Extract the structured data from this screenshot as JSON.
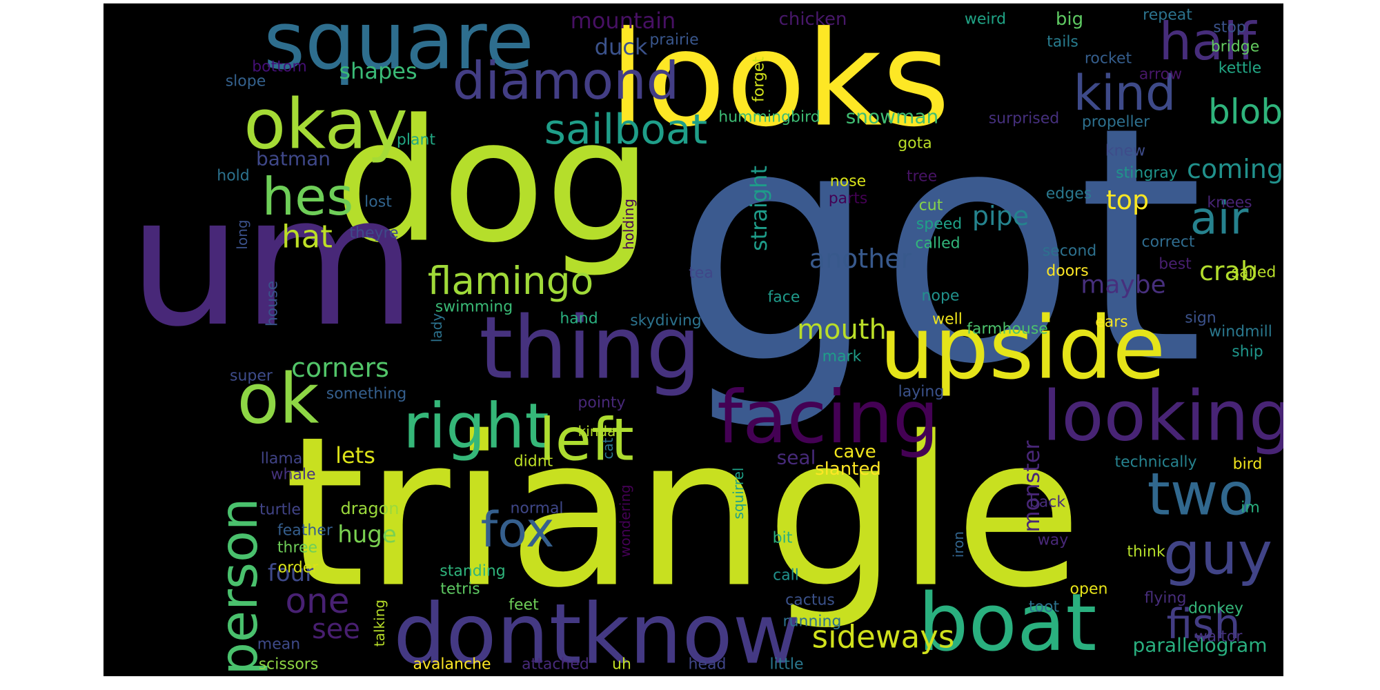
{
  "words": [
    {
      "text": "got",
      "color": "#3b5a8f"
    },
    {
      "text": "triangle",
      "color": "#c8e020"
    },
    {
      "text": "dog",
      "color": "#b5de2b"
    },
    {
      "text": "um",
      "color": "#482878"
    },
    {
      "text": "looks",
      "color": "#fde725"
    },
    {
      "text": "upside",
      "color": "#e5e419"
    },
    {
      "text": "thing",
      "color": "#46327e"
    },
    {
      "text": "square",
      "color": "#2e6e8e"
    },
    {
      "text": "dontknow",
      "color": "#443983"
    },
    {
      "text": "boat",
      "color": "#2ab07f"
    },
    {
      "text": "facing",
      "color": "#440154"
    },
    {
      "text": "looking",
      "color": "#482475"
    },
    {
      "text": "okay",
      "color": "#a5db36"
    },
    {
      "text": "ok",
      "color": "#8ed645"
    },
    {
      "text": "right",
      "color": "#35b779"
    },
    {
      "text": "person",
      "color": "#4ac16d"
    },
    {
      "text": "two",
      "color": "#31688e"
    },
    {
      "text": "guy",
      "color": "#414487"
    },
    {
      "text": "half",
      "color": "#472d7b"
    },
    {
      "text": "diamond",
      "color": "#433e85"
    },
    {
      "text": "left",
      "color": "#addc30"
    },
    {
      "text": "hes",
      "color": "#6ece58"
    },
    {
      "text": "fox",
      "color": "#355f8d"
    },
    {
      "text": "kind",
      "color": "#3e4a89"
    },
    {
      "text": "sailboat",
      "color": "#1f9e89"
    },
    {
      "text": "air",
      "color": "#26828e"
    },
    {
      "text": "flamingo",
      "color": "#a0da39"
    },
    {
      "text": "blob",
      "color": "#2fb47c"
    },
    {
      "text": "fish",
      "color": "#433d84"
    },
    {
      "text": "sideways",
      "color": "#d0e11c"
    },
    {
      "text": "one",
      "color": "#482173"
    },
    {
      "text": "hat",
      "color": "#bddf26"
    },
    {
      "text": "corners",
      "color": "#52c569"
    },
    {
      "text": "another",
      "color": "#38598c"
    },
    {
      "text": "mouth",
      "color": "#bade28"
    },
    {
      "text": "coming",
      "color": "#21918c"
    },
    {
      "text": "pipe",
      "color": "#25838e"
    },
    {
      "text": "top",
      "color": "#fbe723"
    },
    {
      "text": "crab",
      "color": "#b2dd2d"
    },
    {
      "text": "maybe",
      "color": "#472f7d"
    },
    {
      "text": "huge",
      "color": "#7ad151"
    },
    {
      "text": "four",
      "color": "#3e4989"
    },
    {
      "text": "see",
      "color": "#481f70"
    },
    {
      "text": "lets",
      "color": "#dde318"
    },
    {
      "text": "monster",
      "color": "#482677"
    },
    {
      "text": "straight",
      "color": "#1e9c89"
    },
    {
      "text": "mountain",
      "color": "#471063"
    },
    {
      "text": "duck",
      "color": "#3b528b"
    },
    {
      "text": "shapes",
      "color": "#3aba76"
    },
    {
      "text": "batman",
      "color": "#3f4889"
    },
    {
      "text": "snowman",
      "color": "#40bd72"
    },
    {
      "text": "cave",
      "color": "#f1e51d"
    },
    {
      "text": "parallelogram",
      "color": "#29af7f"
    },
    {
      "text": "chicken",
      "color": "#48186a"
    },
    {
      "text": "big",
      "color": "#5ec962"
    },
    {
      "text": "hummingbird",
      "color": "#3dbc74"
    },
    {
      "text": "dragon",
      "color": "#9bd93c"
    },
    {
      "text": "seal",
      "color": "#472a7a"
    },
    {
      "text": "slanted",
      "color": "#fde725"
    },
    {
      "text": "weird",
      "color": "#20a486"
    },
    {
      "text": "prairie",
      "color": "#39568c"
    },
    {
      "text": "forget",
      "color": "#d2e21b"
    },
    {
      "text": "repeat",
      "color": "#2c738e"
    },
    {
      "text": "stop",
      "color": "#3b528b"
    },
    {
      "text": "tails",
      "color": "#287c8e"
    },
    {
      "text": "bridge",
      "color": "#63cb5f"
    },
    {
      "text": "rocket",
      "color": "#355e8d"
    },
    {
      "text": "bottom",
      "color": "#440f76"
    },
    {
      "text": "slope",
      "color": "#34618d"
    },
    {
      "text": "arrow",
      "color": "#481769"
    },
    {
      "text": "kettle",
      "color": "#22a785"
    },
    {
      "text": "surprised",
      "color": "#46307e"
    },
    {
      "text": "propeller",
      "color": "#2d708e"
    },
    {
      "text": "plant",
      "color": "#22a884"
    },
    {
      "text": "gota",
      "color": "#bade28"
    },
    {
      "text": "knew",
      "color": "#3e4c8a"
    },
    {
      "text": "stingray",
      "color": "#1f958b"
    },
    {
      "text": "hold",
      "color": "#2c728e"
    },
    {
      "text": "lost",
      "color": "#32658e"
    },
    {
      "text": "tree",
      "color": "#471365"
    },
    {
      "text": "nose",
      "color": "#d8e219"
    },
    {
      "text": "parts",
      "color": "#440154"
    },
    {
      "text": "edges",
      "color": "#2a788e"
    },
    {
      "text": "knees",
      "color": "#482475"
    },
    {
      "text": "cut",
      "color": "#86d549"
    },
    {
      "text": "speed",
      "color": "#1fa188"
    },
    {
      "text": "called",
      "color": "#32b67a"
    },
    {
      "text": "second",
      "color": "#2d718e"
    },
    {
      "text": "correct",
      "color": "#2f6c8e"
    },
    {
      "text": "long",
      "color": "#3b528b"
    },
    {
      "text": "theyre",
      "color": "#3e4a89"
    },
    {
      "text": "holding",
      "color": "#440154"
    },
    {
      "text": "best",
      "color": "#481f70"
    },
    {
      "text": "doors",
      "color": "#fde725"
    },
    {
      "text": "sailed",
      "color": "#b8de29"
    },
    {
      "text": "house",
      "color": "#39558c"
    },
    {
      "text": "tea",
      "color": "#404688"
    },
    {
      "text": "face",
      "color": "#1f9a8a"
    },
    {
      "text": "nope",
      "color": "#21918c"
    },
    {
      "text": "swimming",
      "color": "#3aba76"
    },
    {
      "text": "hand",
      "color": "#2ab07f"
    },
    {
      "text": "skydiving",
      "color": "#2c738e"
    },
    {
      "text": "sign",
      "color": "#3b528b"
    },
    {
      "text": "well",
      "color": "#efe51c"
    },
    {
      "text": "farmhouse",
      "color": "#4cc26c"
    },
    {
      "text": "ears",
      "color": "#f8e621"
    },
    {
      "text": "windmill",
      "color": "#2a788e"
    },
    {
      "text": "lady",
      "color": "#2c728e"
    },
    {
      "text": "mark",
      "color": "#1f9e89"
    },
    {
      "text": "ship",
      "color": "#1f968b"
    },
    {
      "text": "super",
      "color": "#3e4c8a"
    },
    {
      "text": "something",
      "color": "#355f8d"
    },
    {
      "text": "laying",
      "color": "#3b528b"
    },
    {
      "text": "pointy",
      "color": "#482878"
    },
    {
      "text": "kinda",
      "color": "#b5de2b"
    },
    {
      "text": "cat",
      "color": "#2b758e"
    },
    {
      "text": "didnt",
      "color": "#bddf26"
    },
    {
      "text": "technically",
      "color": "#26828e"
    },
    {
      "text": "bird",
      "color": "#f1e51d"
    },
    {
      "text": "llama",
      "color": "#414487"
    },
    {
      "text": "whale",
      "color": "#46337e"
    },
    {
      "text": "squirrel",
      "color": "#1fa188"
    },
    {
      "text": "back",
      "color": "#472c7a"
    },
    {
      "text": "turtle",
      "color": "#414487"
    },
    {
      "text": "normal",
      "color": "#3f4788"
    },
    {
      "text": "wondering",
      "color": "#440154"
    },
    {
      "text": "im",
      "color": "#29af7f"
    },
    {
      "text": "feather",
      "color": "#355e8d"
    },
    {
      "text": "three",
      "color": "#6ece58"
    },
    {
      "text": "bit",
      "color": "#2ab07f"
    },
    {
      "text": "way",
      "color": "#482878"
    },
    {
      "text": "iron",
      "color": "#32658e"
    },
    {
      "text": "order",
      "color": "#d8e219"
    },
    {
      "text": "think",
      "color": "#b5de2b"
    },
    {
      "text": "standing",
      "color": "#2fb47c"
    },
    {
      "text": "tetris",
      "color": "#5ec962"
    },
    {
      "text": "call",
      "color": "#21918c"
    },
    {
      "text": "open",
      "color": "#e7e419"
    },
    {
      "text": "flying",
      "color": "#472d7b"
    },
    {
      "text": "feet",
      "color": "#6ece58"
    },
    {
      "text": "cactus",
      "color": "#3b528b"
    },
    {
      "text": "toot",
      "color": "#2c738e"
    },
    {
      "text": "donkey",
      "color": "#34b679"
    },
    {
      "text": "running",
      "color": "#2d708e"
    },
    {
      "text": "waitor",
      "color": "#46327e"
    },
    {
      "text": "talking",
      "color": "#b8de29"
    },
    {
      "text": "mean",
      "color": "#3e4a89"
    },
    {
      "text": "scissors",
      "color": "#8fd744"
    },
    {
      "text": "avalanche",
      "color": "#fde725"
    },
    {
      "text": "attached",
      "color": "#472a7a"
    },
    {
      "text": "uh",
      "color": "#c2df23"
    },
    {
      "text": "head",
      "color": "#404688"
    },
    {
      "text": "little",
      "color": "#2a788e"
    }
  ]
}
